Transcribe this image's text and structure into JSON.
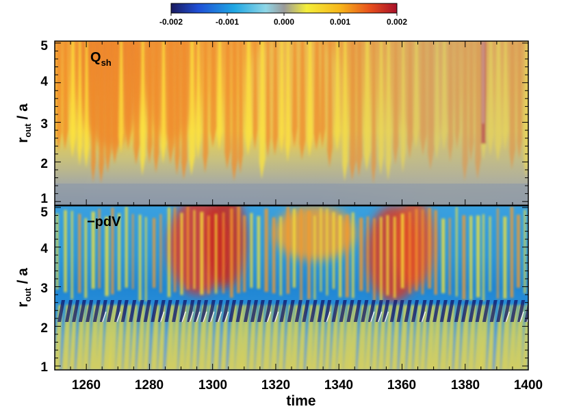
{
  "chart_data": {
    "type": "heatmap",
    "colorbar": {
      "range": [
        -0.002,
        0.002
      ],
      "ticks": [
        "-0.002",
        "-0.001",
        "0.000",
        "0.001",
        "0.002"
      ],
      "placement": "top-center",
      "colors": [
        "#1a1a5e",
        "#1f4fd6",
        "#1fa7e3",
        "#8fd6e6",
        "#9a9a9a",
        "#f4ee3a",
        "#f7b51a",
        "#e8501c",
        "#a8102a"
      ]
    },
    "xaxis": {
      "label": "time",
      "range": [
        1250,
        1400
      ],
      "ticks": [
        1260,
        1280,
        1300,
        1320,
        1340,
        1360,
        1380,
        1400
      ]
    },
    "panels": [
      {
        "label_main": "Q",
        "label_sub": "sh",
        "ylabel_main": "r",
        "ylabel_sub": "out",
        "ylabel_rest": " / a",
        "yrange": [
          0.9,
          5.05
        ],
        "yticks": [
          1,
          2,
          3,
          4,
          5
        ]
      },
      {
        "label_main": "−pdV",
        "label_sub": "",
        "ylabel_main": "r",
        "ylabel_sub": "out",
        "ylabel_rest": " / a",
        "yrange": [
          0.9,
          5.05
        ],
        "yticks": [
          1,
          2,
          3,
          4,
          5
        ]
      }
    ]
  }
}
